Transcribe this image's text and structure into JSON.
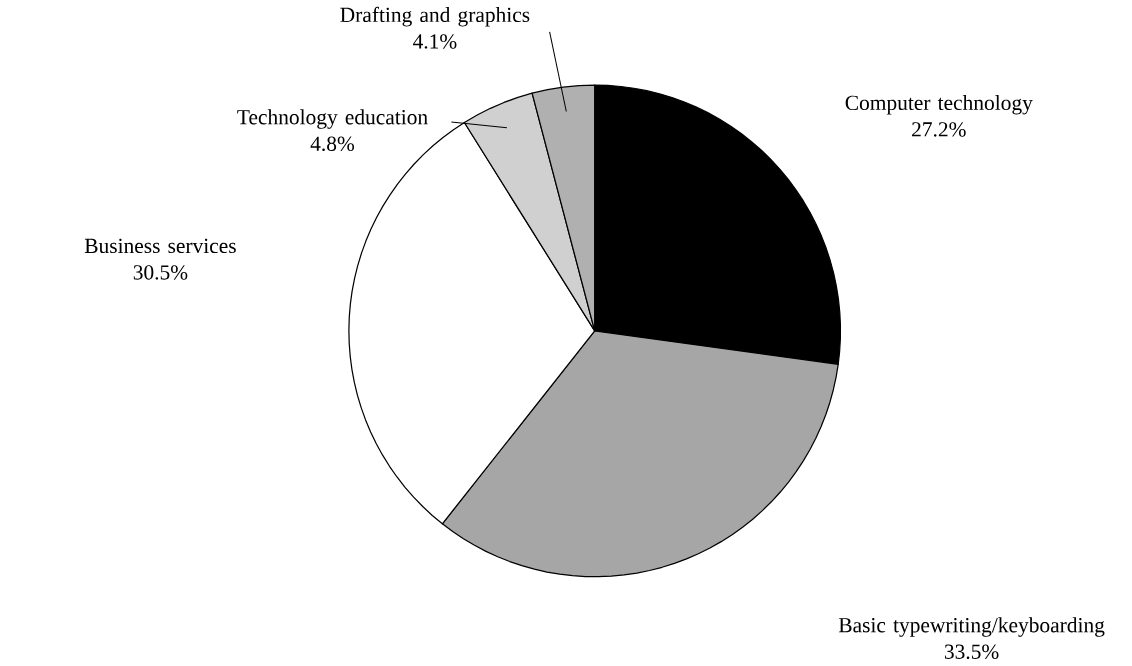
{
  "chart_data": {
    "type": "pie",
    "categories": [
      "Computer technology",
      "Basic typewriting/keyboarding",
      "Business services",
      "Technology education",
      "Drafting and graphics"
    ],
    "values": [
      27.2,
      33.5,
      30.5,
      4.8,
      4.1
    ],
    "value_labels": [
      "27.2%",
      "33.5%",
      "30.5%",
      "4.8%",
      "4.1%"
    ],
    "colors": [
      "#000000",
      "#a6a6a6",
      "#ffffff",
      "#d0d0d0",
      "#b0b0b0"
    ],
    "legend": false
  }
}
